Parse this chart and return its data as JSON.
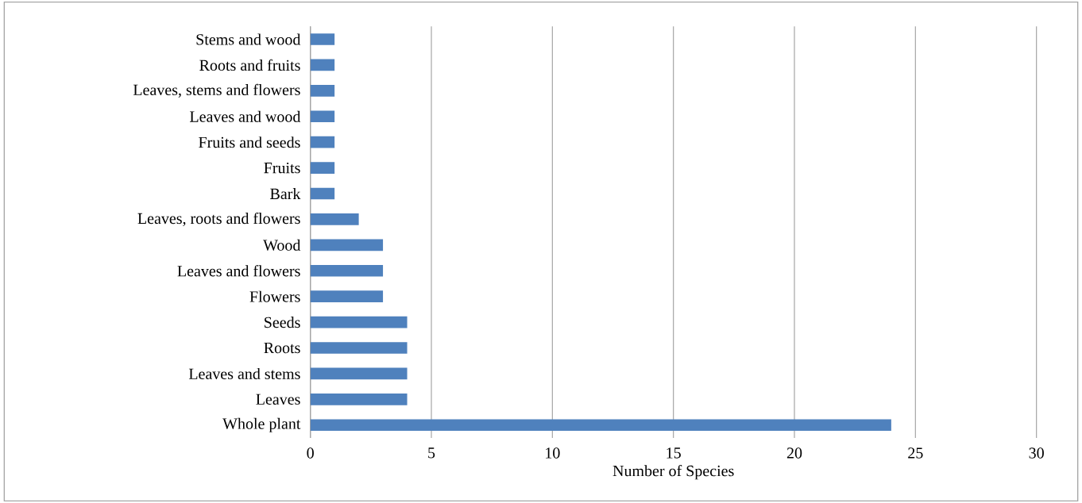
{
  "chart_data": {
    "type": "bar",
    "orientation": "horizontal",
    "xlabel": "Number of Species",
    "categories": [
      "Stems and wood",
      "Roots and fruits",
      "Leaves, stems and flowers",
      "Leaves and wood",
      "Fruits and seeds",
      "Fruits",
      "Bark",
      "Leaves, roots and flowers",
      "Wood",
      "Leaves and flowers",
      "Flowers",
      "Seeds",
      "Roots",
      "Leaves and stems",
      "Leaves",
      "Whole plant"
    ],
    "values": [
      1,
      1,
      1,
      1,
      1,
      1,
      1,
      2,
      3,
      3,
      3,
      4,
      4,
      4,
      4,
      24
    ],
    "color": "#4f81bd",
    "xlim": [
      0,
      30
    ],
    "xticks": [
      0,
      5,
      10,
      15,
      20,
      25,
      30
    ],
    "grid": "x"
  }
}
